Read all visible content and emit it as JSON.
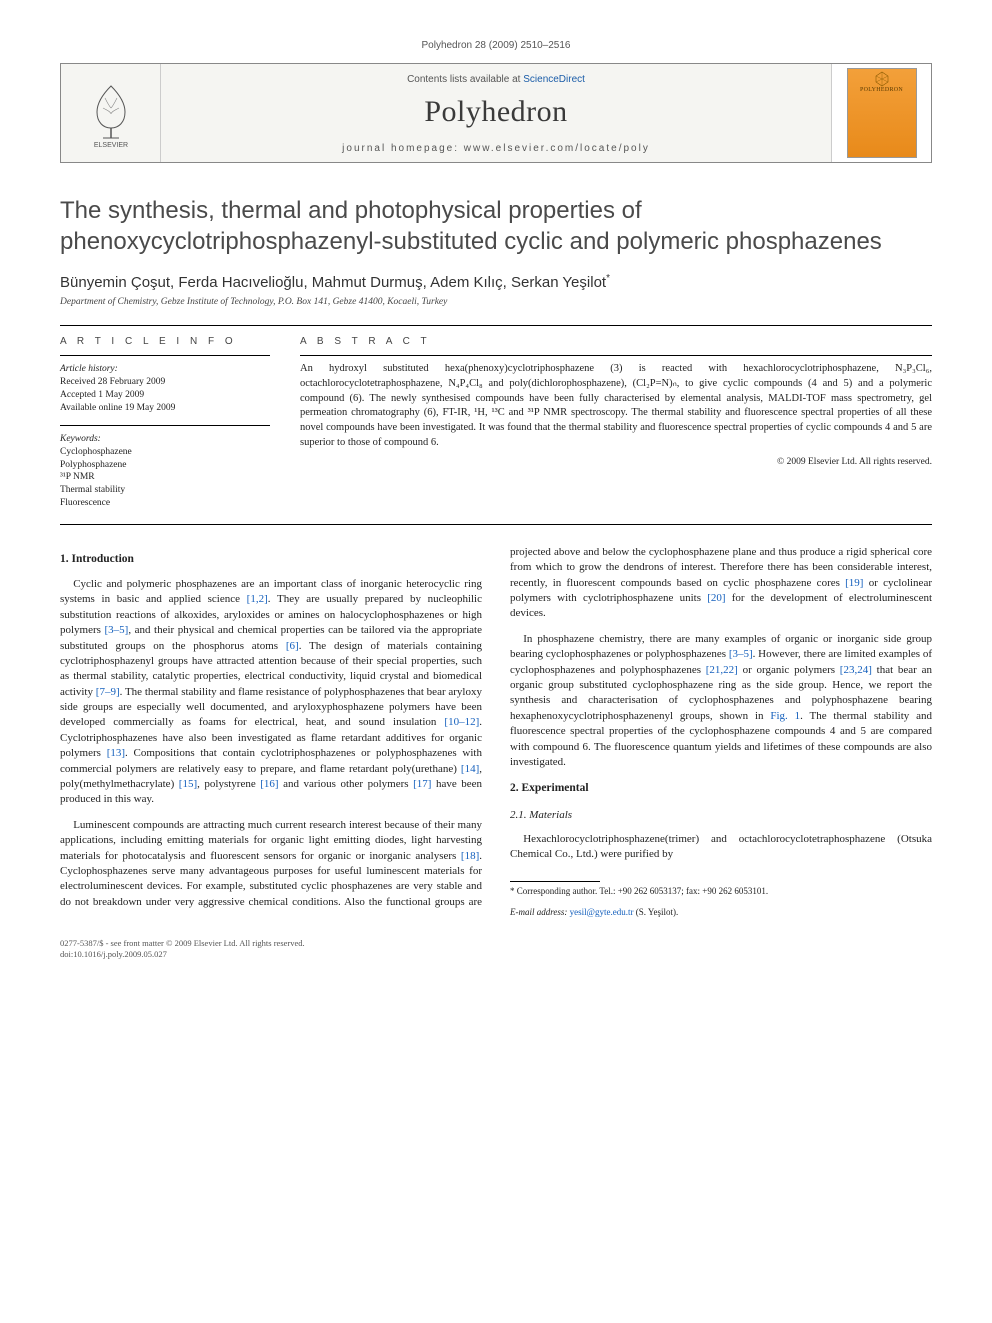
{
  "header": {
    "citation": "Polyhedron 28 (2009) 2510–2516",
    "contents_prefix": "Contents lists available at ",
    "contents_link": "ScienceDirect",
    "journal_name": "Polyhedron",
    "homepage_prefix": "journal homepage: ",
    "homepage_url": "www.elsevier.com/locate/poly",
    "publisher": "ELSEVIER",
    "cover_label": "POLYHEDRON"
  },
  "article": {
    "title": "The synthesis, thermal and photophysical properties of phenoxycyclotriphosphazenyl-substituted cyclic and polymeric phosphazenes",
    "authors": "Bünyemin Çoşut, Ferda Hacıvelioğlu, Mahmut Durmuş, Adem Kılıç, Serkan Yeşilot",
    "corresponding_marker": "*",
    "affiliation": "Department of Chemistry, Gebze Institute of Technology, P.O. Box 141, Gebze 41400, Kocaeli, Turkey"
  },
  "info": {
    "heading": "A R T I C L E   I N F O",
    "history_label": "Article history:",
    "received": "Received 28 February 2009",
    "accepted": "Accepted 1 May 2009",
    "online": "Available online 19 May 2009",
    "keywords_label": "Keywords:",
    "keywords": [
      "Cyclophosphazene",
      "Polyphosphazene",
      "³¹P NMR",
      "Thermal stability",
      "Fluorescence"
    ]
  },
  "abstract": {
    "heading": "A B S T R A C T",
    "text": "An hydroxyl substituted hexa(phenoxy)cyclotriphosphazene (3) is reacted with hexachlorocyclotriphosphazene, N₃P₃Cl₆, octachlorocyclotetraphosphazene, N₄P₄Cl₈ and poly(dichlorophosphazene), (Cl₂P=N)ₙ, to give cyclic compounds (4 and 5) and a polymeric compound (6). The newly synthesised compounds have been fully characterised by elemental analysis, MALDI-TOF mass spectrometry, gel permeation chromatography (6), FT-IR, ¹H, ¹³C and ³¹P NMR spectroscopy. The thermal stability and fluorescence spectral properties of all these novel compounds have been investigated. It was found that the thermal stability and fluorescence spectral properties of cyclic compounds 4 and 5 are superior to those of compound 6.",
    "copyright": "© 2009 Elsevier Ltd. All rights reserved."
  },
  "body": {
    "intro_heading": "1. Introduction",
    "intro_p1": "Cyclic and polymeric phosphazenes are an important class of inorganic heterocyclic ring systems in basic and applied science [1,2]. They are usually prepared by nucleophilic substitution reactions of alkoxides, aryloxides or amines on halocyclophosphazenes or high polymers [3–5], and their physical and chemical properties can be tailored via the appropriate substituted groups on the phosphorus atoms [6]. The design of materials containing cyclotriphosphazenyl groups have attracted attention because of their special properties, such as thermal stability, catalytic properties, electrical conductivity, liquid crystal and biomedical activity [7–9]. The thermal stability and flame resistance of polyphosphazenes that bear aryloxy side groups are especially well documented, and aryloxyphosphazene polymers have been developed commercially as foams for electrical, heat, and sound insulation [10–12]. Cyclotriphosphazenes have also been investigated as flame retardant additives for organic polymers [13]. Compositions that contain cyclotriphosphazenes or polyphosphazenes with commercial polymers are relatively easy to prepare, and flame retardant poly(urethane) [14], poly(methylmethacrylate) [15], polystyrene [16] and various other polymers [17] have been produced in this way.",
    "intro_p2": "Luminescent compounds are attracting much current research interest because of their many applications, including emitting materials for organic light emitting diodes, light harvesting materials for photocatalysis and fluorescent sensors for organic or inorganic analysers [18]. Cyclophosphazenes serve many advantageous purposes for useful luminescent materials for electroluminescent devices. For example, substituted cyclic phosphazenes are very stable and do not breakdown under very aggressive chemical conditions. Also the functional groups are projected above and below the cyclophosphazene plane and thus produce a rigid spherical core from which to grow the dendrons of interest. Therefore there has been considerable interest, recently, in fluorescent compounds based on cyclic phosphazene cores [19] or cyclolinear polymers with cyclotriphosphazene units [20] for the development of electroluminescent devices.",
    "intro_p3": "In phosphazene chemistry, there are many examples of organic or inorganic side group bearing cyclophosphazenes or polyphosphazenes [3–5]. However, there are limited examples of cyclophosphazenes and polyphosphazenes [21,22] or organic polymers [23,24] that bear an organic group substituted cyclophosphazene ring as the side group. Hence, we report the synthesis and characterisation of cyclophosphazenes and polyphosphazene bearing hexaphenoxycyclotriphosphazenenyl groups, shown in Fig. 1. The thermal stability and fluorescence spectral properties of the cyclophosphazene compounds 4 and 5 are compared with compound 6. The fluorescence quantum yields and lifetimes of these compounds are also investigated.",
    "exp_heading": "2. Experimental",
    "materials_heading": "2.1. Materials",
    "materials_p": "Hexachlorocyclotriphosphazene(trimer) and octachlorocyclotetraphosphazene (Otsuka Chemical Co., Ltd.) were purified by"
  },
  "footnote": {
    "corresponding": "* Corresponding author. Tel.: +90 262 6053137; fax: +90 262 6053101.",
    "email_label": "E-mail address: ",
    "email": "yesil@gyte.edu.tr",
    "email_suffix": " (S. Yeşilot)."
  },
  "footer": {
    "issn": "0277-5387/$ - see front matter © 2009 Elsevier Ltd. All rights reserved.",
    "doi": "doi:10.1016/j.poly.2009.05.027"
  },
  "colors": {
    "link": "#1560bd",
    "cover_bg_top": "#f3a03a",
    "cover_bg_bot": "#e88a1a"
  }
}
